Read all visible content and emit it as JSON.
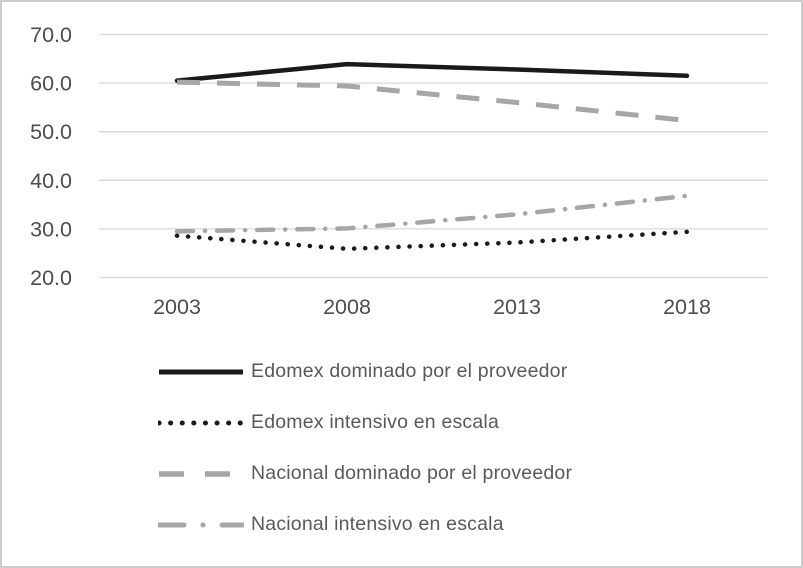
{
  "figure": {
    "background": "#ffffff",
    "border_color": "#cccccc"
  },
  "chart_data": {
    "type": "line",
    "x": [
      2003,
      2008,
      2013,
      2018
    ],
    "x_tick_labels": [
      "2003",
      "2008",
      "2013",
      "2018"
    ],
    "y_ticks": [
      70,
      60,
      50,
      40,
      30,
      20
    ],
    "y_tick_labels": [
      "70.0",
      "60.0",
      "50.0",
      "40.0",
      "30.0",
      "20.0"
    ],
    "ylim": [
      20,
      70
    ],
    "grid": "horizontal-only",
    "gridline_color": "#d9d9d9",
    "axis_text_color": "#4d4d4d",
    "legend_position": "bottom-left",
    "legend_text_color": "#595959",
    "series": [
      {
        "name": "Edomex dominado por el proveedor",
        "color": "#1a1a1a",
        "style": "solid",
        "values": [
          60.5,
          63.9,
          62.8,
          61.5
        ]
      },
      {
        "name": "Edomex intensivo en escala",
        "color": "#1a1a1a",
        "style": "dotted",
        "values": [
          28.6,
          25.9,
          27.2,
          29.4
        ]
      },
      {
        "name": "Nacional dominado por el proveedor",
        "color": "#a6a6a6",
        "style": "dashed",
        "values": [
          60.2,
          59.4,
          56.0,
          52.3
        ]
      },
      {
        "name": "Nacional intensivo en escala",
        "color": "#a6a6a6",
        "style": "dashdot",
        "values": [
          29.5,
          30.1,
          33.0,
          36.8
        ]
      }
    ]
  }
}
